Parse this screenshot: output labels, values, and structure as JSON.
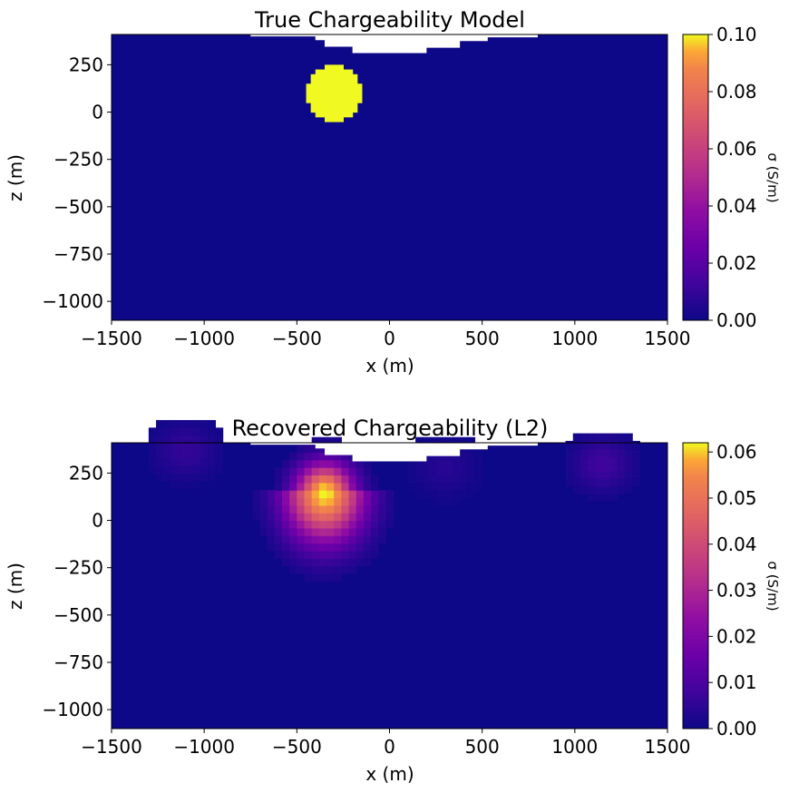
{
  "colormap": "plasma",
  "chart_data": [
    {
      "type": "heatmap",
      "title": "True Chargeability Model",
      "xlabel": "x (m)",
      "ylabel": "z (m)",
      "xlim": [
        -1500,
        1500
      ],
      "ylim": [
        -1100,
        410
      ],
      "xticks": [
        -1500,
        -1000,
        -500,
        0,
        500,
        1000,
        1500
      ],
      "xtick_labels": [
        "−1500",
        "−1000",
        "−500",
        "0",
        "500",
        "1000",
        "1500"
      ],
      "yticks": [
        250,
        0,
        -250,
        -500,
        -750,
        -1000
      ],
      "ytick_labels": [
        "250",
        "0",
        "−250",
        "−500",
        "−750",
        "−1000"
      ],
      "colorbar": {
        "label": "σ (S/m)",
        "vmin": 0,
        "vmax": 0.1,
        "ticks": [
          0,
          0.02,
          0.04,
          0.06,
          0.08,
          0.1
        ],
        "tick_labels": [
          "0.00",
          "0.02",
          "0.04",
          "0.06",
          "0.08",
          "0.10"
        ]
      },
      "background_value": 0.0,
      "anomaly": {
        "shape": "sphere",
        "center": [
          -300,
          100
        ],
        "radius": 150,
        "value": 0.1
      },
      "topography": [
        [
          -1500,
          410
        ],
        [
          -750,
          410
        ],
        [
          -750,
          400
        ],
        [
          -400,
          400
        ],
        [
          -400,
          380
        ],
        [
          -350,
          380
        ],
        [
          -350,
          345
        ],
        [
          -200,
          345
        ],
        [
          -200,
          325
        ],
        [
          -200,
          312
        ],
        [
          200,
          312
        ],
        [
          200,
          340
        ],
        [
          380,
          340
        ],
        [
          380,
          375
        ],
        [
          530,
          375
        ],
        [
          530,
          395
        ],
        [
          800,
          395
        ],
        [
          800,
          410
        ],
        [
          1500,
          410
        ]
      ]
    },
    {
      "type": "heatmap",
      "title": "Recovered Chargeability (L2)",
      "xlabel": "x (m)",
      "ylabel": "z (m)",
      "xlim": [
        -1500,
        1500
      ],
      "ylim": [
        -1100,
        410
      ],
      "xticks": [
        -1500,
        -1000,
        -500,
        0,
        500,
        1000,
        1500
      ],
      "xtick_labels": [
        "−1500",
        "−1000",
        "−500",
        "0",
        "500",
        "1000",
        "1500"
      ],
      "yticks": [
        250,
        0,
        -250,
        -500,
        -750,
        -1000
      ],
      "ytick_labels": [
        "250",
        "0",
        "−250",
        "−500",
        "−750",
        "−1000"
      ],
      "colorbar": {
        "label": "σ (S/m)",
        "vmin": 0,
        "vmax": 0.062,
        "ticks": [
          0,
          0.01,
          0.02,
          0.03,
          0.04,
          0.05,
          0.06
        ],
        "tick_labels": [
          "0.00",
          "0.01",
          "0.02",
          "0.03",
          "0.04",
          "0.05",
          "0.06"
        ]
      },
      "background_value": 0.0,
      "anomaly": {
        "shape": "diffuse",
        "peak_location": [
          -350,
          150
        ],
        "peak_value": 0.062
      },
      "minor_anomalies": [
        {
          "location": [
            1150,
            300
          ],
          "value": 0.008
        },
        {
          "location": [
            -1100,
            370
          ],
          "value": 0.006
        },
        {
          "location": [
            300,
            280
          ],
          "value": 0.004
        }
      ],
      "topography": [
        [
          -1500,
          410
        ],
        [
          -750,
          410
        ],
        [
          -750,
          400
        ],
        [
          -400,
          400
        ],
        [
          -400,
          380
        ],
        [
          -350,
          380
        ],
        [
          -350,
          345
        ],
        [
          -200,
          345
        ],
        [
          -200,
          325
        ],
        [
          -200,
          312
        ],
        [
          200,
          312
        ],
        [
          200,
          340
        ],
        [
          380,
          340
        ],
        [
          380,
          375
        ],
        [
          530,
          375
        ],
        [
          530,
          395
        ],
        [
          800,
          395
        ],
        [
          800,
          410
        ],
        [
          1500,
          410
        ]
      ]
    }
  ]
}
